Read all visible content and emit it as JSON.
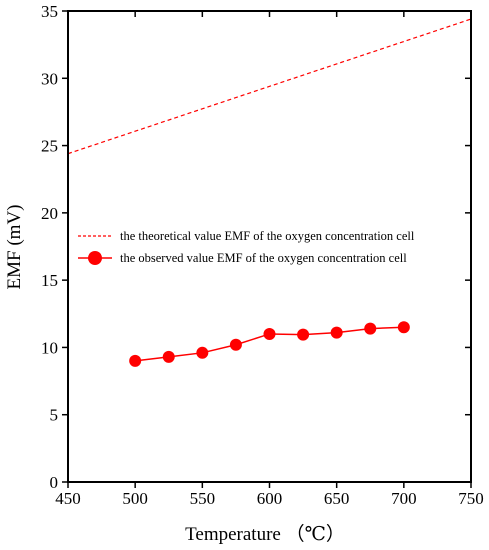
{
  "chart_data": {
    "type": "line",
    "title": "",
    "xlabel": "Temperature （℃）",
    "ylabel": "EMF (mV)",
    "xlim": [
      450,
      750
    ],
    "ylim": [
      0,
      35
    ],
    "xticks": [
      450,
      500,
      550,
      600,
      650,
      700,
      750
    ],
    "yticks": [
      0,
      5,
      10,
      15,
      20,
      25,
      30,
      35
    ],
    "grid": false,
    "legend_position": "center-left",
    "series": [
      {
        "name": "the theoretical value EMF of the oxygen concentration cell",
        "style": "dashed",
        "marker": "none",
        "color": "#ff0000",
        "x": [
          450,
          750
        ],
        "y": [
          24.4,
          34.4
        ]
      },
      {
        "name": "the observed value EMF of the oxygen concentration cell",
        "style": "solid",
        "marker": "circle",
        "color": "#ff0000",
        "x": [
          500,
          525,
          550,
          575,
          600,
          625,
          650,
          675,
          700
        ],
        "y": [
          9.0,
          9.3,
          9.6,
          10.2,
          11.0,
          10.95,
          11.1,
          11.4,
          11.5
        ]
      }
    ]
  }
}
